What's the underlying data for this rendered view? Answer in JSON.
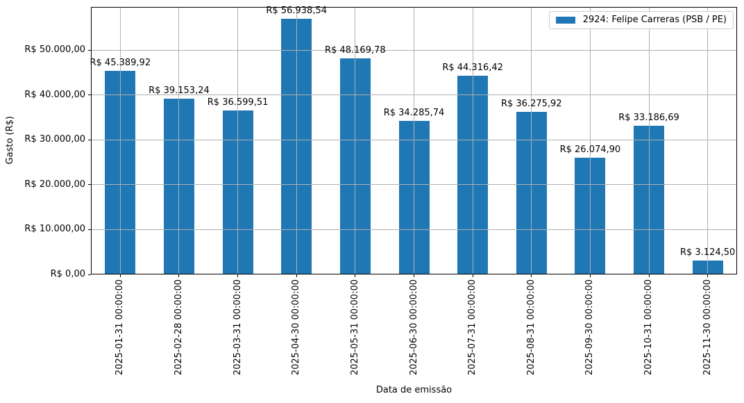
{
  "legend": {
    "label": "2924: Felipe Carreras (PSB / PE)",
    "swatch_color": "#1f77b4"
  },
  "chart_data": {
    "type": "bar",
    "title": "",
    "xlabel": "Data de emissão",
    "ylabel": "Gasto (R$)",
    "categories": [
      "2025-01-31 00:00:00",
      "2025-02-28 00:00:00",
      "2025-03-31 00:00:00",
      "2025-04-30 00:00:00",
      "2025-05-31 00:00:00",
      "2025-06-30 00:00:00",
      "2025-07-31 00:00:00",
      "2025-08-31 00:00:00",
      "2025-09-30 00:00:00",
      "2025-10-31 00:00:00",
      "2025-11-30 00:00:00"
    ],
    "values": [
      45389.92,
      39153.24,
      36599.51,
      56938.54,
      48169.78,
      34285.74,
      44316.42,
      36275.92,
      26074.9,
      33186.69,
      3124.5
    ],
    "value_labels": [
      "R$ 45.389,92",
      "R$ 39.153,24",
      "R$ 36.599,51",
      "R$ 56.938,54",
      "R$ 48.169,78",
      "R$ 34.285,74",
      "R$ 44.316,42",
      "R$ 36.275,92",
      "R$ 26.074,90",
      "R$ 33.186,69",
      "R$ 3.124,50"
    ],
    "y_ticks": [
      {
        "value": 0,
        "label": "R$ 0,00"
      },
      {
        "value": 10000,
        "label": "R$ 10.000,00"
      },
      {
        "value": 20000,
        "label": "R$ 20.000,00"
      },
      {
        "value": 30000,
        "label": "R$ 30.000,00"
      },
      {
        "value": 40000,
        "label": "R$ 40.000,00"
      },
      {
        "value": 50000,
        "label": "R$ 50.000,00"
      }
    ],
    "ylim": [
      0,
      59600
    ],
    "grid": true,
    "grid_above_bars": true,
    "legend_position": "upper right",
    "bar_color": "#1f77b4",
    "grid_color": "#b0b0b0"
  }
}
